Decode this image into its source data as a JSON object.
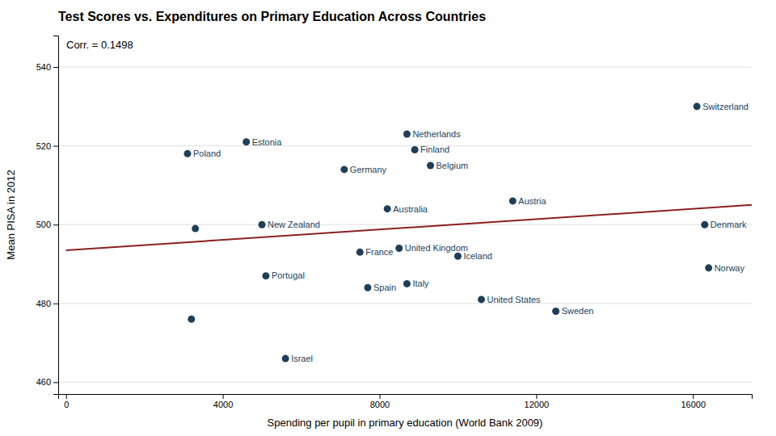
{
  "chart_data": {
    "type": "scatter",
    "title": "Test Scores vs. Expenditures on Primary Education Across Countries",
    "xlabel": "Spending per pupil in primary education (World Bank 2009)",
    "ylabel": "Mean PISA in 2012",
    "annotation": "Corr. =  0.1498",
    "xlim": [
      -200,
      17500
    ],
    "ylim": [
      457,
      548
    ],
    "xticks": [
      0,
      4000,
      8000,
      12000,
      16000
    ],
    "yticks": [
      460,
      480,
      500,
      520,
      540
    ],
    "grid": true,
    "series": [
      {
        "type": "scatter",
        "color": "#1e3f5a",
        "x": [
          16100,
          4600,
          3100,
          8700,
          8900,
          9300,
          7100,
          11400,
          8200,
          16300,
          5000,
          8500,
          7500,
          10000,
          16400,
          5100,
          7700,
          8700,
          10600,
          12500,
          5600,
          3300,
          3200
        ],
        "values": [
          530,
          521,
          518,
          523,
          519,
          515,
          514,
          506,
          504,
          500,
          500,
          494,
          493,
          492,
          489,
          487,
          484,
          485,
          481,
          478,
          466,
          499,
          476
        ],
        "labels": [
          "Switzerland",
          "Estonia",
          "Poland",
          "Netherlands",
          "Finland",
          "Belgium",
          "Germany",
          "Austria",
          "Australia",
          "Denmark",
          "New Zealand",
          "United Kingdom",
          "France",
          "Iceland",
          "Norway",
          "Portugal",
          "Spain",
          "Italy",
          "United States",
          "Sweden",
          "Israel",
          null,
          null
        ]
      },
      {
        "type": "line",
        "color": "#8b2020",
        "x": [
          0,
          17500
        ],
        "values": [
          493.5,
          505.0
        ]
      }
    ]
  }
}
